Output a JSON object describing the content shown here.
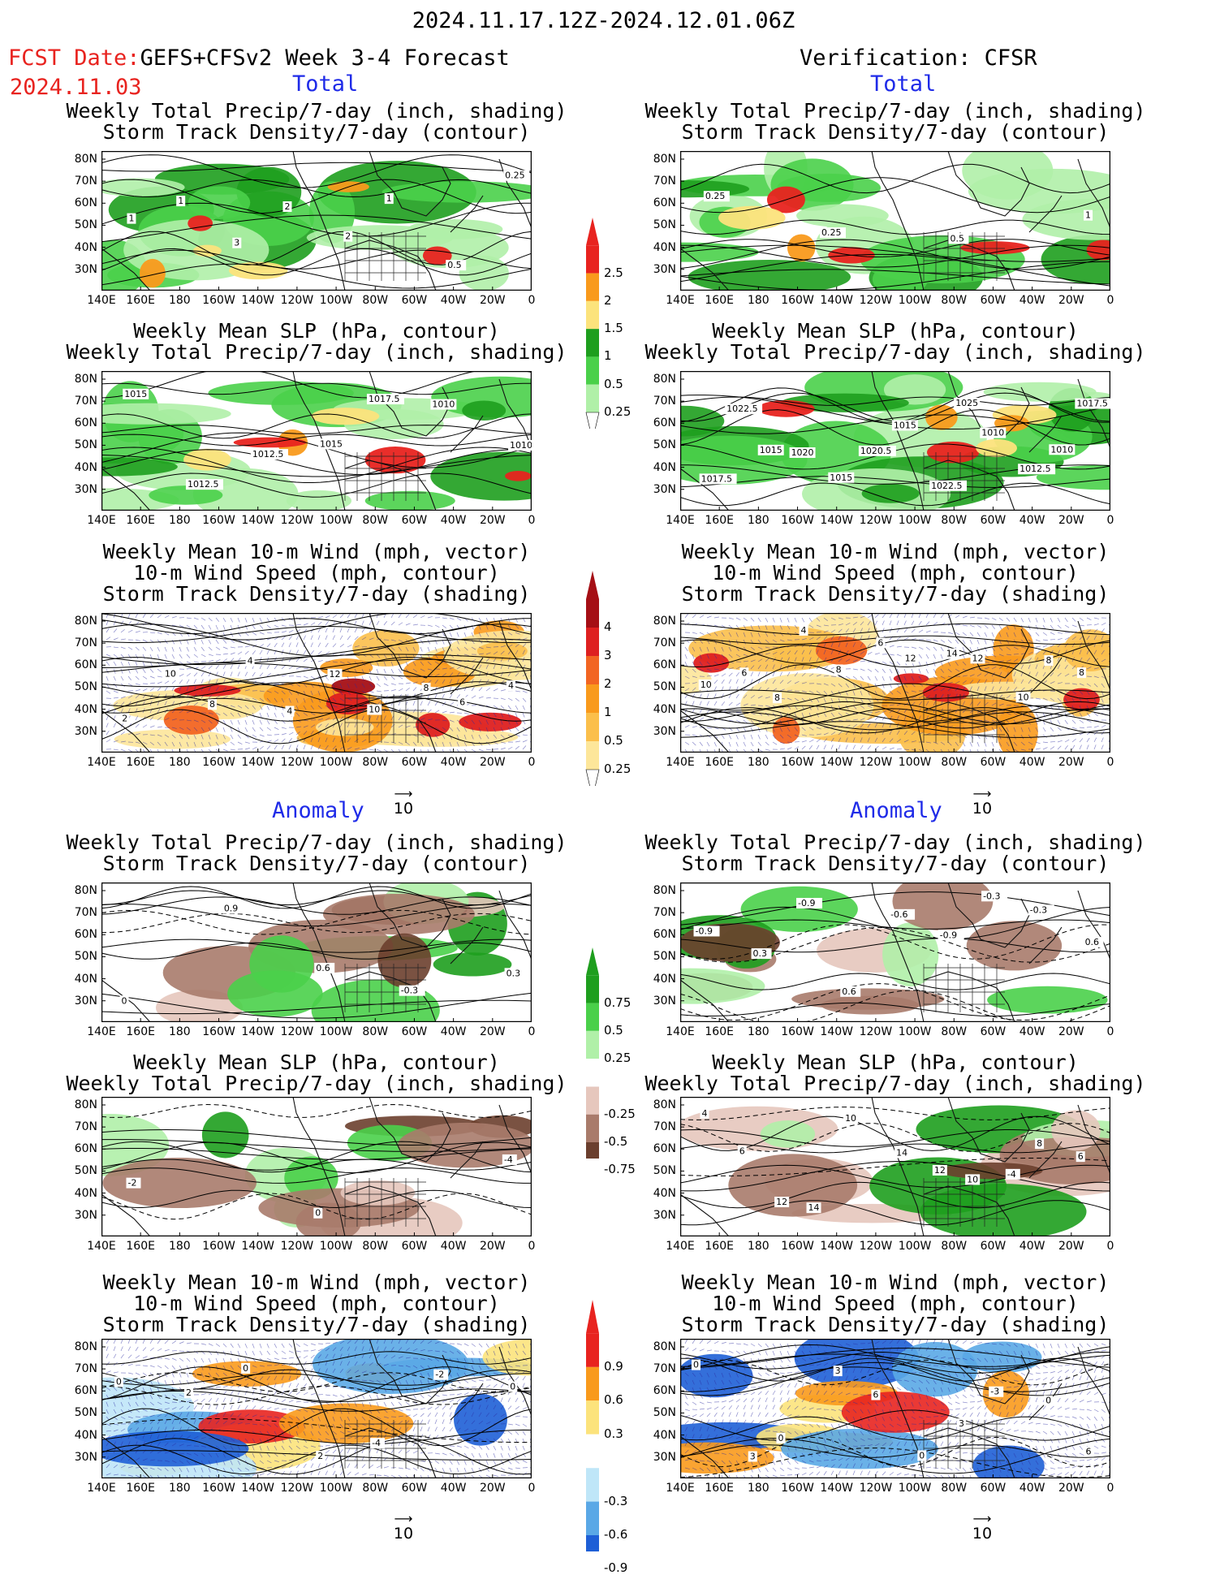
{
  "header": {
    "period": "2024.11.17.12Z-2024.12.01.06Z",
    "fcst_label": "FCST Date:",
    "forecast_name": "GEFS+CFSv2 Week 3-4 Forecast",
    "fcst_date": "2024.11.03",
    "verification": "Verification: CFSR"
  },
  "sections": {
    "total": "Total",
    "anomaly": "Anomaly"
  },
  "titles": {
    "precip_storm": [
      "Weekly Total Precip/7-day (inch, shading)",
      "Storm Track Density/7-day (contour)"
    ],
    "slp_precip": [
      "Weekly Mean SLP (hPa, contour)",
      "Weekly Total Precip/7-day (inch, shading)"
    ],
    "wind_storm": [
      "Weekly Mean 10-m Wind (mph, vector)",
      "10-m Wind Speed (mph, contour)",
      "Storm Track Density/7-day (shading)"
    ]
  },
  "axes": {
    "lat_labels": [
      "80N",
      "70N",
      "60N",
      "50N",
      "40N",
      "30N"
    ],
    "lon_labels": [
      "140E",
      "160E",
      "180",
      "160W",
      "140W",
      "120W",
      "100W",
      "80W",
      "60W",
      "40W",
      "20W",
      "0"
    ]
  },
  "vector_ref": "10",
  "colorbars": {
    "precip_total": {
      "labels": [
        "2.5",
        "2",
        "1.5",
        "1",
        "0.5",
        "0.25"
      ],
      "colors": [
        "#e8231f",
        "#f99a1c",
        "#fce37c",
        "#1e9e1e",
        "#4ad04a",
        "#b0f0a8"
      ]
    },
    "storm_total": {
      "labels": [
        "4",
        "3",
        "2",
        "1",
        "0.5",
        "0.25"
      ],
      "colors": [
        "#a50f15",
        "#de2020",
        "#f26522",
        "#f99a1c",
        "#fbbf4b",
        "#fde69a"
      ]
    },
    "precip_anom": {
      "labels": [
        "0.75",
        "0.5",
        "0.25",
        "-0.25",
        "-0.5",
        "-0.75"
      ],
      "colors": [
        "#1e9e1e",
        "#4ad04a",
        "#b0f0a8",
        "#e6c7bd",
        "#a97b6b",
        "#6b3f2e"
      ]
    },
    "storm_anom": {
      "labels": [
        "0.9",
        "0.6",
        "0.3",
        "-0.3",
        "-0.6",
        "-0.9"
      ],
      "colors": [
        "#e8231f",
        "#f99a1c",
        "#fce37c",
        "#bfe6f8",
        "#5aa8e6",
        "#1e5fd6"
      ]
    }
  },
  "panels": {
    "fcst_total_precip": {
      "contour_labels": [
        "1",
        "1",
        "3",
        "2",
        "2",
        "1",
        "0.5",
        "0.25"
      ]
    },
    "obs_total_precip": {
      "contour_labels": [
        "0.25",
        "0.25",
        "0.5",
        "1"
      ]
    },
    "fcst_total_slp": {
      "contour_labels": [
        "1015",
        "1012.5",
        "1012.5",
        "1015",
        "1017.5",
        "1010",
        "1010"
      ]
    },
    "obs_total_slp": {
      "contour_labels": [
        "1017.5",
        "1022.5",
        "1015",
        "1020",
        "1015",
        "1020.5",
        "1015",
        "1022.5",
        "1025",
        "1010",
        "1012.5",
        "1010",
        "1017.5"
      ]
    },
    "fcst_total_wind": {
      "contour_labels": [
        "2",
        "10",
        "8",
        "4",
        "4",
        "12",
        "10",
        "8",
        "6",
        "4"
      ]
    },
    "obs_total_wind": {
      "contour_labels": [
        "10",
        "6",
        "8",
        "4",
        "8",
        "6",
        "12",
        "14",
        "12",
        "10",
        "8",
        "8"
      ]
    },
    "fcst_anom_precip": {
      "contour_labels": [
        "0",
        "0.9",
        "0.6",
        "-0.3",
        "0.3"
      ]
    },
    "obs_anom_precip": {
      "contour_labels": [
        "-0.9",
        "0.3",
        "-0.9",
        "0.6",
        "-0.6",
        "-0.9",
        "-0.3",
        "-0.3",
        "0.6"
      ]
    },
    "fcst_anom_slp": {
      "contour_labels": [
        "-2",
        "0",
        "-4"
      ]
    },
    "obs_anom_slp": {
      "contour_labels": [
        "4",
        "6",
        "12",
        "14",
        "10",
        "14",
        "12",
        "10",
        "-4",
        "8",
        "6"
      ]
    },
    "fcst_anom_wind": {
      "contour_labels": [
        "0",
        "2",
        "0",
        "2",
        "-4",
        "-2",
        "0"
      ]
    },
    "obs_anom_wind": {
      "contour_labels": [
        "0",
        "3",
        "0",
        "3",
        "6",
        "0",
        "3",
        "-3",
        "0",
        "6"
      ]
    }
  }
}
